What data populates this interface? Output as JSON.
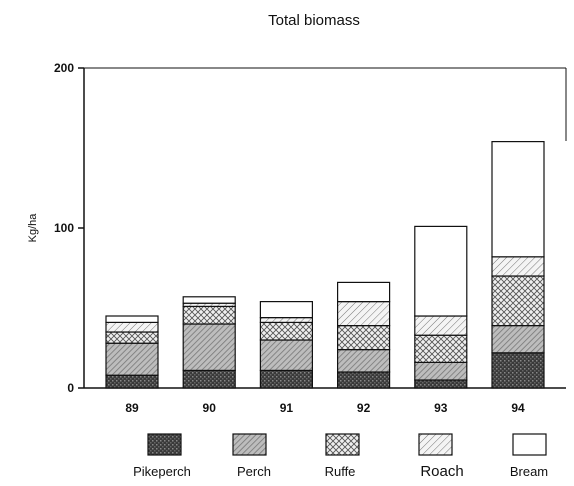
{
  "chart_data": {
    "type": "bar",
    "stacked": true,
    "title": "Total biomass",
    "xlabel": "",
    "ylabel": "Kg/ha",
    "ylim": [
      0,
      200
    ],
    "yticks": [
      0,
      100,
      200
    ],
    "categories": [
      "89",
      "90",
      "91",
      "92",
      "93",
      "94"
    ],
    "series": [
      {
        "name": "Pikeperch",
        "values": [
          8,
          11,
          11,
          10,
          5,
          22
        ],
        "pattern": "dots"
      },
      {
        "name": "Perch",
        "values": [
          20,
          29,
          19,
          14,
          11,
          17
        ],
        "pattern": "hatch"
      },
      {
        "name": "Ruffe",
        "values": [
          7,
          11,
          11,
          15,
          17,
          31
        ],
        "pattern": "cross"
      },
      {
        "name": "Roach",
        "values": [
          6,
          2,
          3,
          15,
          12,
          12
        ],
        "pattern": "hatch-light"
      },
      {
        "name": "Bream",
        "values": [
          4,
          4,
          10,
          12,
          56,
          72
        ],
        "pattern": "none"
      }
    ],
    "grid": false,
    "legend_position": "bottom"
  }
}
